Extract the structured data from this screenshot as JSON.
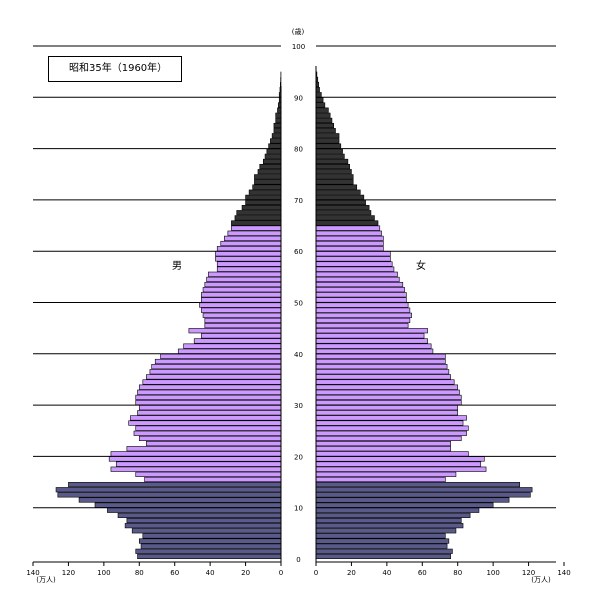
{
  "chart_data": {
    "type": "bar",
    "orientation": "population-pyramid",
    "title": "昭和35年（1960年）",
    "unit_age": "(歳)",
    "unit_population": "(万人)",
    "male_label": "男",
    "female_label": "女",
    "age_ticks": [
      "0",
      "10",
      "20",
      "30",
      "40",
      "50",
      "60",
      "70",
      "80",
      "90",
      "100"
    ],
    "x_ticks": [
      "140",
      "120",
      "100",
      "80",
      "60",
      "40",
      "20",
      "0"
    ],
    "x_ticks_female": [
      "0",
      "20",
      "40",
      "60",
      "80",
      "100",
      "120",
      "140"
    ],
    "xlim": [
      0,
      140
    ],
    "ylim": [
      0,
      100
    ],
    "color_0_14": "#5a5a8a",
    "color_15_64": "#cc99ff",
    "color_65_plus": "#333333",
    "ages": [
      0,
      1,
      2,
      3,
      4,
      5,
      6,
      7,
      8,
      9,
      10,
      11,
      12,
      13,
      14,
      15,
      16,
      17,
      18,
      19,
      20,
      21,
      22,
      23,
      24,
      25,
      26,
      27,
      28,
      29,
      30,
      31,
      32,
      33,
      34,
      35,
      36,
      37,
      38,
      39,
      40,
      41,
      42,
      43,
      44,
      45,
      46,
      47,
      48,
      49,
      50,
      51,
      52,
      53,
      54,
      55,
      56,
      57,
      58,
      59,
      60,
      61,
      62,
      63,
      64,
      65,
      66,
      67,
      68,
      69,
      70,
      71,
      72,
      73,
      74,
      75,
      76,
      77,
      78,
      79,
      80,
      81,
      82,
      83,
      84,
      85,
      86,
      87,
      88,
      89,
      90,
      91,
      92,
      93,
      94
    ],
    "series": [
      {
        "name": "男",
        "values": [
          81,
          82,
          79,
          80,
          78,
          84,
          88,
          87,
          92,
          98,
          105,
          114,
          126,
          127,
          120,
          77,
          82,
          96,
          93,
          97,
          96,
          87,
          76,
          80,
          83,
          82,
          86,
          85,
          81,
          80,
          82,
          82,
          81,
          80,
          78,
          76,
          74,
          73,
          71,
          68,
          58,
          55,
          49,
          45,
          52,
          43,
          43,
          44,
          45,
          46,
          45,
          45,
          44,
          43,
          42,
          41,
          36,
          36,
          37,
          37,
          36,
          34,
          32,
          30,
          28,
          28,
          26,
          25,
          22,
          20,
          20,
          18,
          16,
          15,
          15,
          13,
          12,
          10,
          9,
          8,
          7,
          6,
          5,
          4,
          4,
          3,
          3,
          2,
          1.5,
          1,
          1,
          0.6,
          0.4,
          0.2,
          0.1
        ]
      },
      {
        "name": "女",
        "values": [
          76,
          77,
          74,
          75,
          73,
          79,
          83,
          82,
          87,
          92,
          100,
          109,
          121,
          122,
          115,
          73,
          79,
          96,
          93,
          95,
          86,
          76,
          76,
          82,
          85,
          86,
          83,
          85,
          80,
          80,
          82,
          82,
          81,
          80,
          78,
          76,
          75,
          74,
          73,
          73,
          66,
          65,
          63,
          61,
          63,
          52,
          53,
          54,
          53,
          52,
          51,
          51,
          50,
          49,
          47,
          46,
          44,
          43,
          42,
          42,
          38,
          38,
          38,
          37,
          36,
          35,
          33,
          31,
          30,
          28,
          27,
          25,
          23,
          21,
          21,
          20,
          19,
          18,
          16,
          15,
          14,
          13,
          13,
          11,
          10,
          9,
          8,
          7,
          5,
          4,
          3,
          2,
          1.5,
          1,
          0.5
        ]
      }
    ]
  }
}
